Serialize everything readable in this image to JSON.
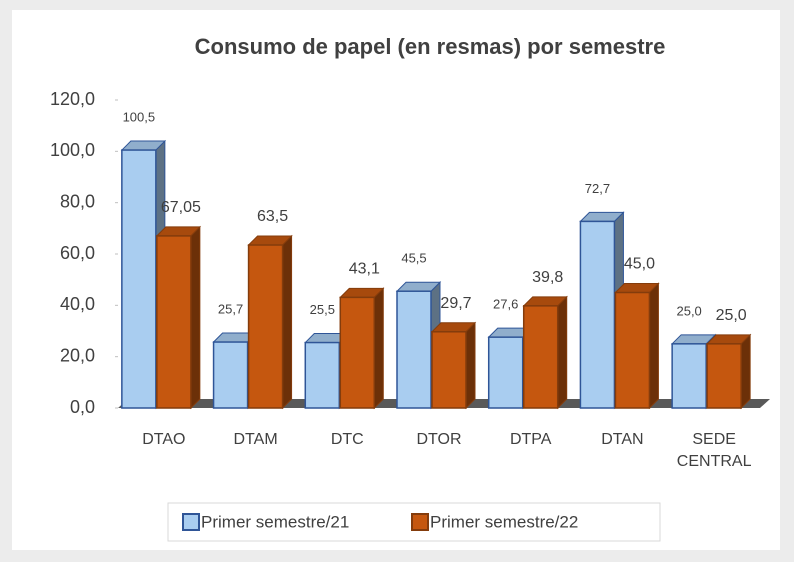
{
  "chart_data": {
    "type": "bar3d",
    "title": "Consumo de papel (en resmas) por semestre",
    "categories": [
      "DTAO",
      "DTAM",
      "DTC",
      "DTOR",
      "DTPA",
      "DTAN",
      "SEDE CENTRAL"
    ],
    "series": [
      {
        "name": "Primer semestre/21",
        "color": "#a9cdf0",
        "values": [
          100.5,
          25.7,
          25.5,
          45.5,
          27.6,
          72.7,
          25.0
        ],
        "value_labels": [
          "100,5",
          "25,7",
          "25,5",
          "45,5",
          "27,6",
          "72,7",
          "25,0"
        ]
      },
      {
        "name": "Primer semestre/22",
        "color": "#c5570f",
        "values": [
          67.05,
          63.5,
          43.1,
          29.7,
          39.8,
          45.0,
          25.0
        ],
        "value_labels": [
          "67,05",
          "63,5",
          "43,1",
          "29,7",
          "39,8",
          "45,0",
          "25,0"
        ]
      }
    ],
    "ylim": [
      0,
      120
    ],
    "yticks": [
      {
        "value": 0,
        "label": "0,0"
      },
      {
        "value": 20,
        "label": "20,0"
      },
      {
        "value": 40,
        "label": "40,0"
      },
      {
        "value": 60,
        "label": "60,0"
      },
      {
        "value": 80,
        "label": "80,0"
      },
      {
        "value": 100,
        "label": "100,0"
      },
      {
        "value": 120,
        "label": "120,0"
      }
    ],
    "legend": "bottom"
  }
}
